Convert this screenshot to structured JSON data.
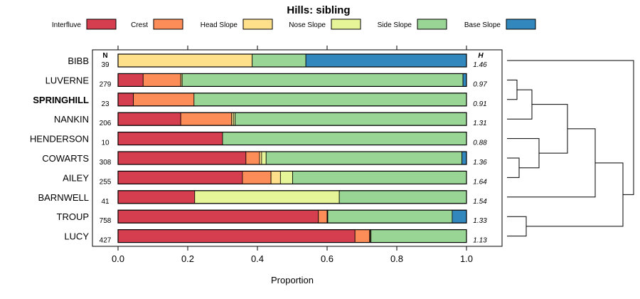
{
  "chart_data": {
    "type": "bar",
    "orientation": "horizontal-stacked",
    "title": "Hills: sibling",
    "xlabel": "Proportion",
    "xlim": [
      0,
      1
    ],
    "xticks": [
      "0.0",
      "0.2",
      "0.4",
      "0.6",
      "0.8",
      "1.0"
    ],
    "n_header": "N",
    "h_header": "H",
    "legend": [
      {
        "name": "Interfluve",
        "color": "#D53E4F"
      },
      {
        "name": "Crest",
        "color": "#FC8D59"
      },
      {
        "name": "Head Slope",
        "color": "#FEE08B"
      },
      {
        "name": "Nose Slope",
        "color": "#E6F598"
      },
      {
        "name": "Side Slope",
        "color": "#99D594"
      },
      {
        "name": "Base Slope",
        "color": "#3288BD"
      }
    ],
    "rows": [
      {
        "label": "BIBB",
        "bold": false,
        "n": "39",
        "h": "1.46",
        "values": [
          0,
          0,
          0.385,
          0,
          0.154,
          0.461
        ]
      },
      {
        "label": "LUVERNE",
        "bold": false,
        "n": "279",
        "h": "0.97",
        "values": [
          0.072,
          0.108,
          0.004,
          0,
          0.806,
          0.01
        ]
      },
      {
        "label": "SPRINGHILL",
        "bold": true,
        "n": "23",
        "h": "0.91",
        "values": [
          0.044,
          0.174,
          0,
          0,
          0.782,
          0
        ]
      },
      {
        "label": "NANKIN",
        "bold": false,
        "n": "206",
        "h": "1.31",
        "values": [
          0.18,
          0.146,
          0.005,
          0.005,
          0.664,
          0
        ]
      },
      {
        "label": "HENDERSON",
        "bold": false,
        "n": "10",
        "h": "0.88",
        "values": [
          0.3,
          0,
          0,
          0,
          0.7,
          0
        ]
      },
      {
        "label": "COWARTS",
        "bold": false,
        "n": "308",
        "h": "1.36",
        "values": [
          0.367,
          0.039,
          0.006,
          0.013,
          0.562,
          0.013
        ]
      },
      {
        "label": "AILEY",
        "bold": false,
        "n": "255",
        "h": "1.64",
        "values": [
          0.357,
          0.082,
          0.027,
          0.035,
          0.499,
          0
        ]
      },
      {
        "label": "BARNWELL",
        "bold": false,
        "n": "41",
        "h": "1.54",
        "values": [
          0.22,
          0,
          0,
          0.415,
          0.365,
          0
        ]
      },
      {
        "label": "TROUP",
        "bold": false,
        "n": "758",
        "h": "1.33",
        "values": [
          0.575,
          0.025,
          0.001,
          0.001,
          0.357,
          0.041
        ]
      },
      {
        "label": "LUCY",
        "bold": false,
        "n": "427",
        "h": "1.13",
        "values": [
          0.68,
          0.042,
          0.002,
          0.002,
          0.274,
          0
        ]
      }
    ],
    "dendrogram": "hierarchical clustering of rows"
  }
}
